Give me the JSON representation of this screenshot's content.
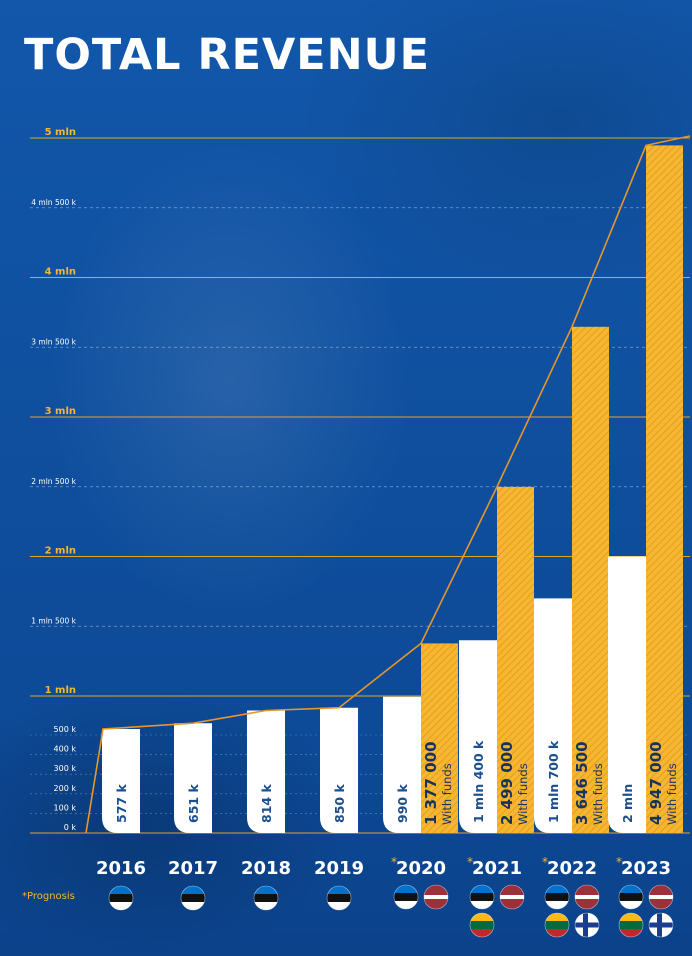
{
  "title": "TOTAL REVENUE",
  "footnote": "*Prognosis",
  "colors": {
    "background": "#0f509f",
    "base_bar": "#ffffff",
    "funds_bar": "#f5b730",
    "gridline": "#e2a524",
    "trend_line": "#e8962a",
    "value_text": "#1b4f8f"
  },
  "chart_data": {
    "type": "bar",
    "title": "TOTAL REVENUE",
    "categories": [
      "2016",
      "2017",
      "2018",
      "2019",
      "2020",
      "2021",
      "2022",
      "2023"
    ],
    "prognosis": [
      false,
      false,
      false,
      false,
      true,
      true,
      true,
      true
    ],
    "prognosis_mark": "*",
    "ylim": [
      0,
      5000000
    ],
    "y_ticks": [
      {
        "value": 0,
        "label": "0 k",
        "style": "small"
      },
      {
        "value": 100000,
        "label": "100 k",
        "style": "small"
      },
      {
        "value": 200000,
        "label": "200 k",
        "style": "small"
      },
      {
        "value": 300000,
        "label": "300 k",
        "style": "small"
      },
      {
        "value": 400000,
        "label": "400 k",
        "style": "small"
      },
      {
        "value": 500000,
        "label": "500 k",
        "style": "small"
      },
      {
        "value": 1000000,
        "label": "1 mln",
        "style": "major"
      },
      {
        "value": 1500000,
        "label": "1 mln 500 k",
        "style": "minor"
      },
      {
        "value": 2000000,
        "label": "2 mln",
        "style": "major"
      },
      {
        "value": 2500000,
        "label": "2 mln 500 k",
        "style": "minor"
      },
      {
        "value": 3000000,
        "label": "3 mln",
        "style": "major"
      },
      {
        "value": 3500000,
        "label": "3 mln 500 k",
        "style": "minor"
      },
      {
        "value": 4000000,
        "label": "4 mln",
        "style": "major"
      },
      {
        "value": 4500000,
        "label": "4 mln 500 k",
        "style": "minor"
      },
      {
        "value": 5000000,
        "label": "5 mln",
        "style": "major"
      }
    ],
    "grid": true,
    "series": [
      {
        "name": "",
        "color": "#ffffff",
        "values": [
          577000,
          651000,
          814000,
          850000,
          990000,
          1400000,
          1700000,
          2000000
        ],
        "labels": [
          "577 k",
          "651 k",
          "814 k",
          "850 k",
          "990 k",
          "1 mln 400 k",
          "1 mln 700 k",
          "2 mln"
        ]
      },
      {
        "name": "With funds",
        "color": "#f5b730",
        "values": [
          null,
          null,
          null,
          null,
          1377000,
          2499000,
          3646500,
          4947000
        ],
        "labels": [
          null,
          null,
          null,
          null,
          "1 377 000",
          "2 499 000",
          "3 646 500",
          "4 947 000"
        ]
      }
    ],
    "trend_line": {
      "color": "#e8962a",
      "values": [
        577000,
        651000,
        814000,
        850000,
        1377000,
        2499000,
        3646500,
        4947000
      ]
    },
    "flags": [
      [
        "estonia"
      ],
      [
        "estonia"
      ],
      [
        "estonia"
      ],
      [
        "estonia"
      ],
      [
        "estonia",
        "latvia"
      ],
      [
        "estonia",
        "latvia",
        "lithuania"
      ],
      [
        "estonia",
        "latvia",
        "lithuania",
        "finland"
      ],
      [
        "estonia",
        "latvia",
        "lithuania",
        "finland"
      ]
    ]
  }
}
